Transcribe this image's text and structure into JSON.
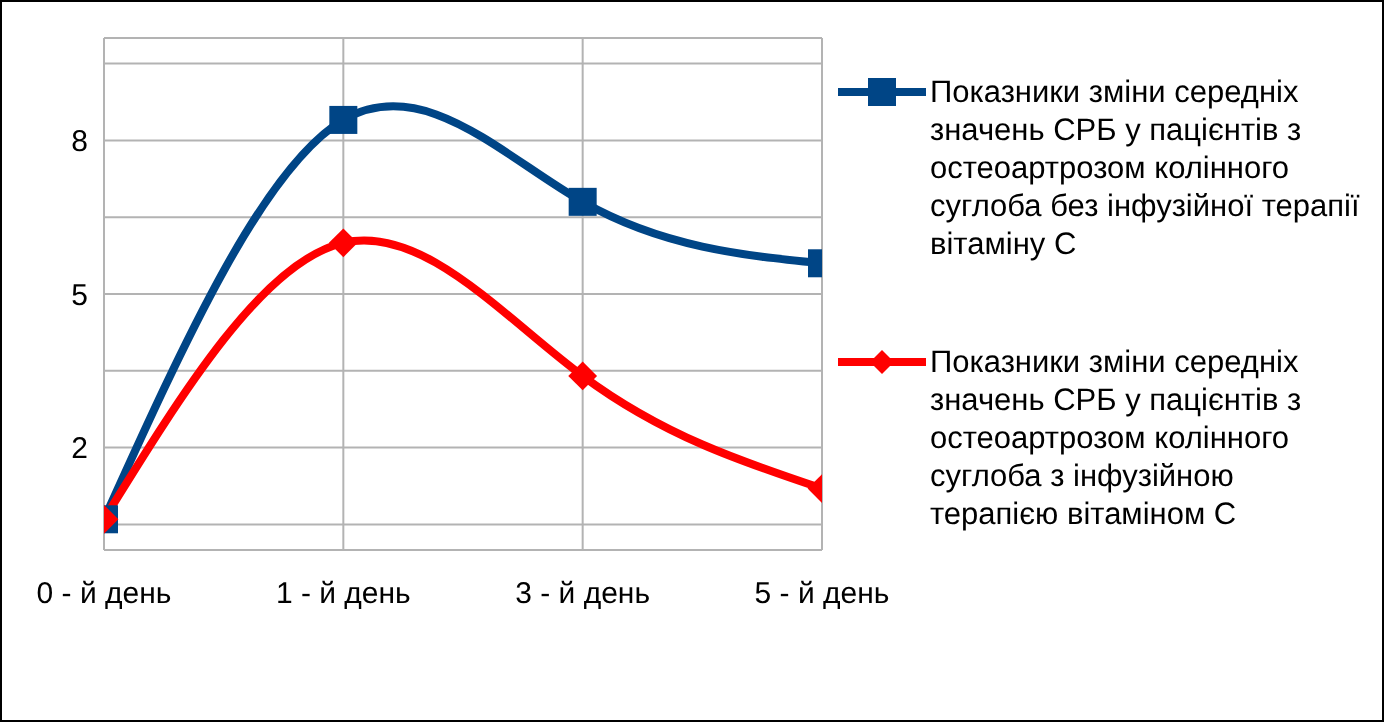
{
  "chart_data": {
    "type": "line",
    "categories": [
      "0 - й день",
      "1 - й день",
      "3 - й день",
      "5 - й день"
    ],
    "series": [
      {
        "name": "Показники зміни середніх значень СРБ  у пацієнтів з остеоартрозом колінного суглоба без інфузійної терапії вітаміну С",
        "color": "#004586",
        "marker": "square",
        "values": [
          0.6,
          8.4,
          6.8,
          5.6
        ]
      },
      {
        "name": "Показники зміни середніх значень СРБ  у пацієнтів з остеоартрозом колінного суглоба з інфузійною терапією вітаміном С",
        "color": "#ff0000",
        "marker": "diamond",
        "values": [
          0.6,
          6.0,
          3.4,
          1.2
        ]
      }
    ],
    "ylim": [
      0,
      10
    ],
    "yticks": [
      {
        "value": 0.5,
        "label": null
      },
      2,
      {
        "value": 3.5,
        "label": null
      },
      5,
      {
        "value": 6.5,
        "label": null
      },
      8,
      {
        "value": 9.5,
        "label": null
      }
    ],
    "grid": true,
    "legend": "right",
    "line_style": "solid"
  }
}
